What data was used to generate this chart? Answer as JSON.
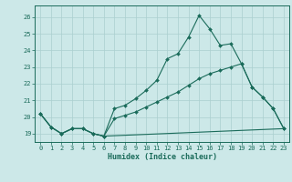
{
  "xlabel": "Humidex (Indice chaleur)",
  "bg_color": "#cce8e8",
  "line_color": "#1a6b5a",
  "grid_color": "#aacfcf",
  "xlim": [
    -0.5,
    23.5
  ],
  "ylim": [
    18.5,
    26.7
  ],
  "yticks": [
    19,
    20,
    21,
    22,
    23,
    24,
    25,
    26
  ],
  "xticks": [
    0,
    1,
    2,
    3,
    4,
    5,
    6,
    7,
    8,
    9,
    10,
    11,
    12,
    13,
    14,
    15,
    16,
    17,
    18,
    19,
    20,
    21,
    22,
    23
  ],
  "line1_x": [
    0,
    1,
    2,
    3,
    4,
    5,
    6,
    7,
    8,
    9,
    10,
    11,
    12,
    13,
    14,
    15,
    16,
    17,
    18,
    19,
    20,
    21,
    22,
    23
  ],
  "line1_y": [
    20.2,
    19.4,
    19.0,
    19.3,
    19.3,
    19.0,
    18.85,
    20.5,
    20.7,
    21.1,
    21.6,
    22.2,
    23.5,
    23.8,
    24.8,
    26.1,
    25.3,
    24.3,
    24.4,
    23.2,
    21.8,
    21.2,
    20.5,
    19.3
  ],
  "line2_x": [
    0,
    1,
    2,
    3,
    4,
    5,
    6,
    7,
    8,
    9,
    10,
    11,
    12,
    13,
    14,
    15,
    16,
    17,
    18,
    19,
    20,
    21,
    22,
    23
  ],
  "line2_y": [
    20.2,
    19.4,
    19.0,
    19.3,
    19.3,
    19.0,
    18.85,
    19.9,
    20.1,
    20.3,
    20.6,
    20.9,
    21.2,
    21.5,
    21.9,
    22.3,
    22.6,
    22.8,
    23.0,
    23.2,
    21.8,
    21.2,
    20.5,
    19.3
  ],
  "line3_x": [
    0,
    1,
    2,
    3,
    4,
    5,
    6,
    23
  ],
  "line3_y": [
    20.2,
    19.4,
    19.0,
    19.3,
    19.3,
    19.0,
    18.85,
    19.3
  ]
}
